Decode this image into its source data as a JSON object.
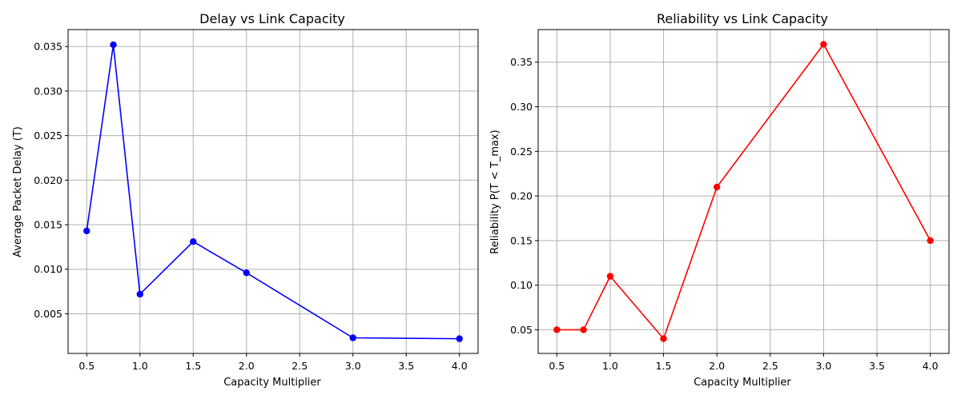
{
  "chart_data": [
    {
      "type": "line",
      "title": "Delay vs Link Capacity",
      "xlabel": "Capacity Multiplier",
      "ylabel": "Average Packet Delay (T)",
      "x": [
        0.5,
        0.75,
        1.0,
        1.5,
        2.0,
        3.0,
        4.0
      ],
      "series": [
        {
          "values": [
            0.0143,
            0.0352,
            0.0072,
            0.0131,
            0.0096,
            0.0023,
            0.0022
          ],
          "color": "#0000ff",
          "marker": "circle"
        }
      ],
      "xticks": [
        "0.5",
        "1.0",
        "1.5",
        "2.0",
        "2.5",
        "3.0",
        "3.5",
        "4.0"
      ],
      "yticks": [
        "0.005",
        "0.010",
        "0.015",
        "0.020",
        "0.025",
        "0.030",
        "0.035"
      ],
      "xlim": [
        0.325,
        4.175
      ],
      "ylim": [
        0.00055,
        0.0369
      ],
      "grid": true
    },
    {
      "type": "line",
      "title": "Reliability vs Link Capacity",
      "xlabel": "Capacity Multiplier",
      "ylabel": "Reliability P(T < T_max)",
      "x": [
        0.5,
        0.75,
        1.0,
        1.5,
        2.0,
        3.0,
        4.0
      ],
      "series": [
        {
          "values": [
            0.05,
            0.05,
            0.11,
            0.04,
            0.21,
            0.37,
            0.15
          ],
          "color": "#ff0000",
          "marker": "circle"
        }
      ],
      "xticks": [
        "0.5",
        "1.0",
        "1.5",
        "2.0",
        "2.5",
        "3.0",
        "3.5",
        "4.0"
      ],
      "yticks": [
        "0.05",
        "0.10",
        "0.15",
        "0.20",
        "0.25",
        "0.30",
        "0.35"
      ],
      "xlim": [
        0.325,
        4.175
      ],
      "ylim": [
        0.0235,
        0.3865
      ],
      "grid": true
    }
  ]
}
